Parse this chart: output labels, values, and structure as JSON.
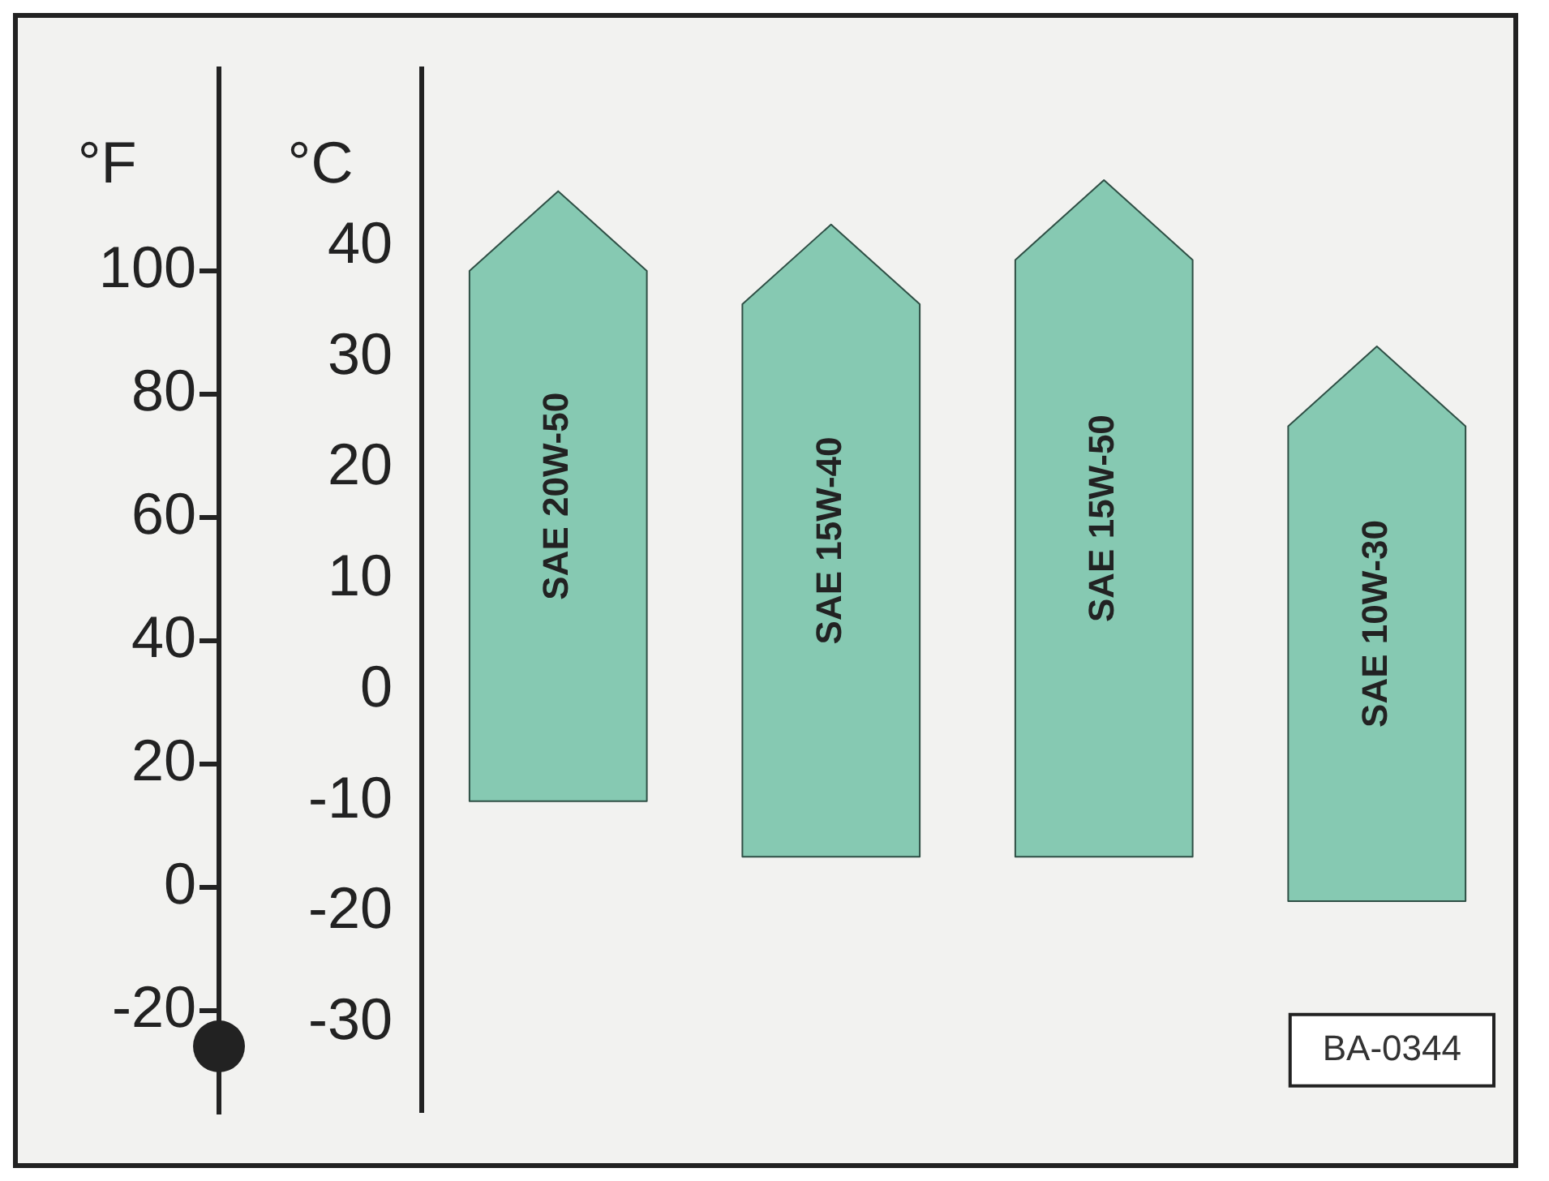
{
  "chart_data": {
    "type": "bar",
    "categories": [
      "SAE 20W-50",
      "SAE 15W-40",
      "SAE 15W-50",
      "SAE 10W-30"
    ],
    "base": [
      -10,
      -15,
      -15,
      -19
    ],
    "values": [
      55,
      57,
      61,
      50
    ],
    "color": "#86c9b2",
    "ylabel": "°C",
    "y2label": "°F",
    "ylim": [
      -38,
      56
    ],
    "yticks": [
      -30,
      -20,
      -10,
      0,
      10,
      20,
      30,
      40
    ],
    "y2lim": [
      -36.4,
      132.8
    ],
    "y2ticks": [
      -20,
      0,
      20,
      40,
      60,
      80,
      100
    ],
    "annotations": [
      "BA-0344"
    ]
  }
}
